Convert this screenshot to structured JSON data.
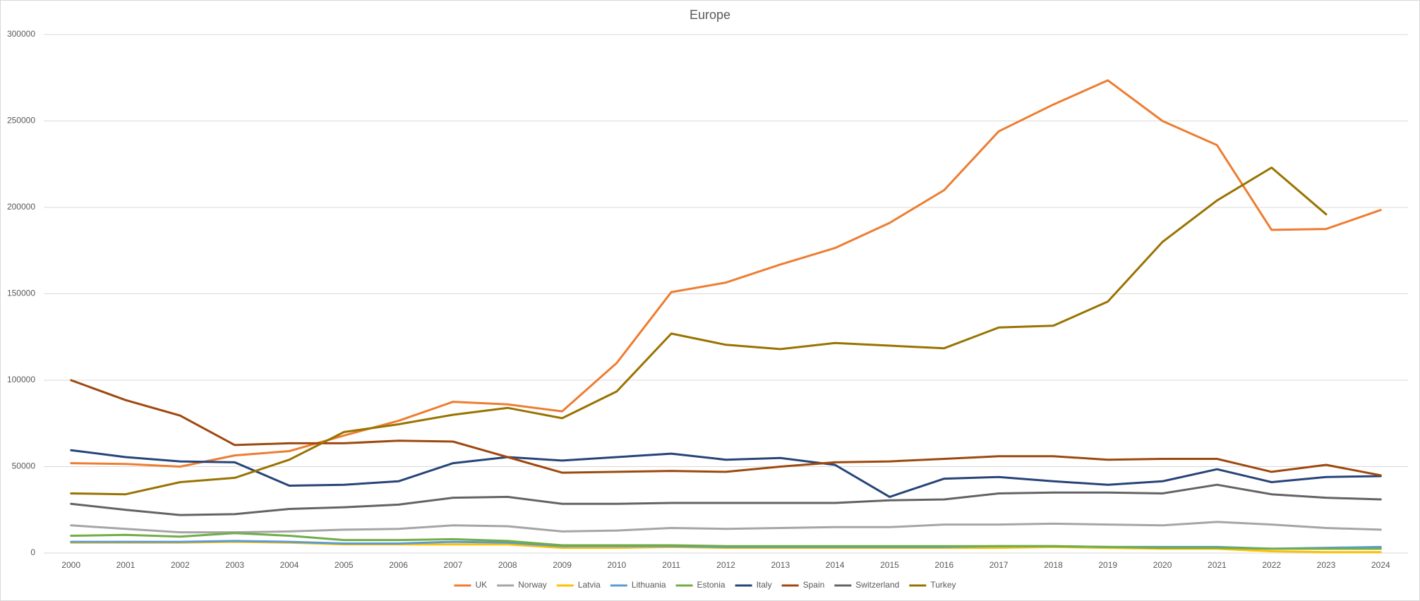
{
  "chart_data": {
    "type": "line",
    "title": "Europe",
    "categories": [
      "2000",
      "2001",
      "2002",
      "2003",
      "2004",
      "2005",
      "2006",
      "2007",
      "2008",
      "2009",
      "2010",
      "2011",
      "2012",
      "2013",
      "2014",
      "2015",
      "2016",
      "2017",
      "2018",
      "2019",
      "2020",
      "2021",
      "2022",
      "2023",
      "2024"
    ],
    "ylim": [
      0,
      300000
    ],
    "yticks": [
      0,
      50000,
      100000,
      150000,
      200000,
      250000,
      300000
    ],
    "grid": true,
    "legend": "bottom",
    "series": [
      {
        "name": "UK",
        "color": "#ED7D31",
        "values": [
          52000,
          51500,
          50000,
          56500,
          59000,
          68000,
          76500,
          87500,
          86000,
          82000,
          110000,
          151000,
          156500,
          167000,
          176500,
          191000,
          210000,
          244000,
          259500,
          273500,
          250000,
          236000,
          187000,
          187500,
          198500
        ]
      },
      {
        "name": "Norway",
        "color": "#A5A5A5",
        "values": [
          16000,
          14000,
          12000,
          12000,
          12500,
          13500,
          14000,
          16000,
          15500,
          12500,
          13000,
          14500,
          14000,
          14500,
          15000,
          15000,
          16500,
          16500,
          17000,
          16500,
          16000,
          18000,
          16500,
          14500,
          13500
        ]
      },
      {
        "name": "Latvia",
        "color": "#FFC000",
        "values": [
          6000,
          6000,
          6000,
          6500,
          6000,
          5000,
          5000,
          5000,
          5000,
          3000,
          3000,
          3500,
          3000,
          3000,
          3000,
          3000,
          3000,
          3000,
          3500,
          3000,
          2500,
          2500,
          1000,
          500,
          500
        ]
      },
      {
        "name": "Lithuania",
        "color": "#5B9BD5",
        "values": [
          6500,
          6500,
          6500,
          7000,
          6500,
          5500,
          5500,
          6500,
          6000,
          4000,
          4000,
          4000,
          3500,
          3500,
          3500,
          3500,
          3500,
          4000,
          4000,
          3500,
          3500,
          3500,
          2500,
          3000,
          3500
        ]
      },
      {
        "name": "Estonia",
        "color": "#70AD47",
        "values": [
          10000,
          10500,
          9500,
          11500,
          10000,
          7500,
          7500,
          8000,
          7000,
          4500,
          4500,
          4500,
          4000,
          4000,
          4000,
          4000,
          4000,
          4000,
          4000,
          3500,
          3000,
          3000,
          2500,
          2500,
          2500
        ]
      },
      {
        "name": "Italy",
        "color": "#264478",
        "values": [
          59500,
          55500,
          53000,
          52500,
          39000,
          39500,
          41500,
          52000,
          55500,
          53500,
          55500,
          57500,
          54000,
          55000,
          51000,
          32500,
          43000,
          44000,
          41500,
          39500,
          41500,
          48500,
          41000,
          44000,
          44500
        ]
      },
      {
        "name": "Spain",
        "color": "#9E480E",
        "values": [
          100000,
          88500,
          79500,
          62500,
          63500,
          63500,
          65000,
          64500,
          55500,
          46500,
          47000,
          47500,
          47000,
          50000,
          52500,
          53000,
          54500,
          56000,
          56000,
          54000,
          54500,
          54500,
          47000,
          51000,
          45000
        ]
      },
      {
        "name": "Switzerland",
        "color": "#636363",
        "values": [
          28500,
          25000,
          22000,
          22500,
          25500,
          26500,
          28000,
          32000,
          32500,
          28500,
          28500,
          29000,
          29000,
          29000,
          29000,
          30500,
          31000,
          34500,
          35000,
          35000,
          34500,
          39500,
          34000,
          32000,
          31000
        ]
      },
      {
        "name": "Turkey",
        "color": "#997300",
        "values": [
          34500,
          34000,
          41000,
          43500,
          54000,
          70000,
          74500,
          80000,
          84000,
          78000,
          93500,
          127000,
          120500,
          118000,
          121500,
          120000,
          118500,
          130500,
          131500,
          145500,
          180000,
          204000,
          223000,
          196000,
          null
        ]
      }
    ]
  }
}
